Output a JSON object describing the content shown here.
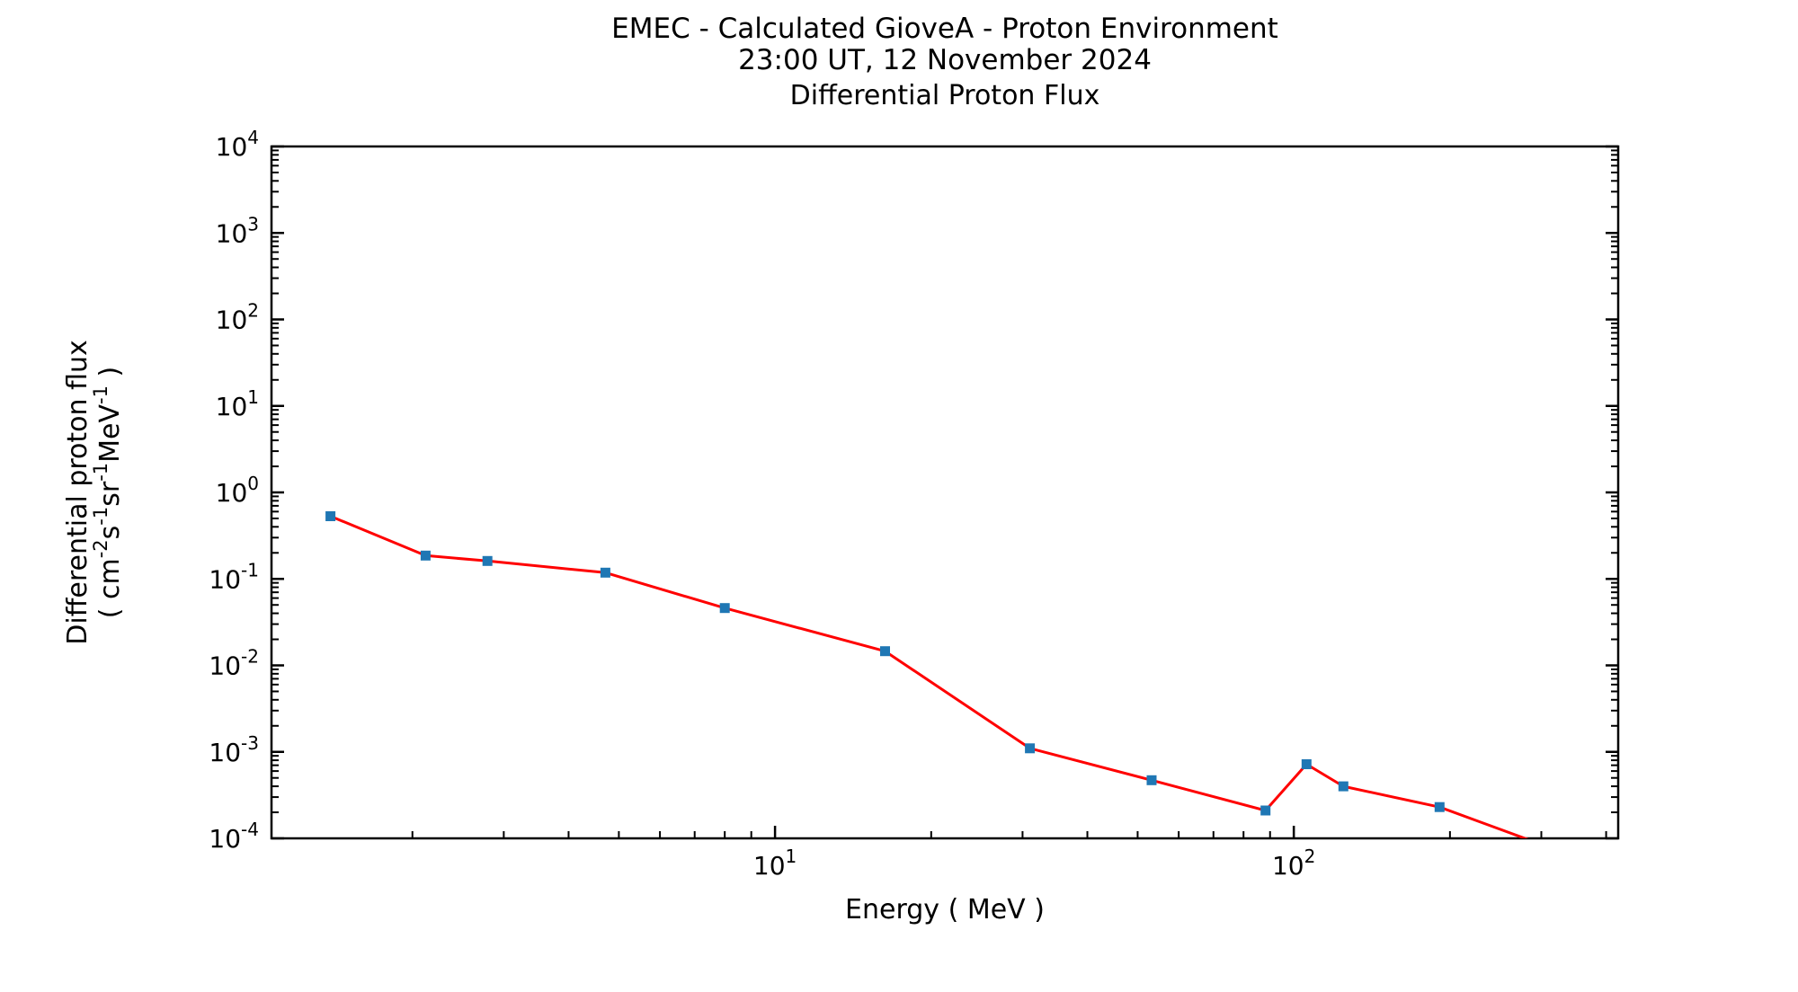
{
  "figure": {
    "suptitle_line1": "EMEC - Calculated GioveA - Proton Environment",
    "suptitle_line2": "23:00 UT, 12 November 2024"
  },
  "chart_data": {
    "type": "line",
    "title": "Differential Proton Flux",
    "xlabel": "Energy ( MeV )",
    "ylabel_line1": "Differential proton flux",
    "ylabel_line2_mathtext": "( cm^{-2}s^{-1}sr^{-1}MeV^{-1} )",
    "xscale": "log",
    "yscale": "log",
    "xlim": [
      1.07,
      422
    ],
    "ylim": [
      0.0001,
      10000
    ],
    "x_major_tick_exponents": [
      1,
      2
    ],
    "y_major_tick_exponents": [
      4,
      3,
      2,
      1,
      0,
      -1,
      -2,
      -3,
      -4
    ],
    "grid": false,
    "legend": false,
    "line_color": "#ff0000",
    "marker_color": "#1f77b4",
    "axis_color": "#000000",
    "series": [
      {
        "name": "differential proton flux",
        "marker": "square",
        "x_energy_mev": [
          1.39,
          2.12,
          2.79,
          4.71,
          8.0,
          16.3,
          31.0,
          53.2,
          88.2,
          105.8,
          124.6,
          191.0,
          330.0
        ],
        "y_flux": [
          0.53,
          0.186,
          0.161,
          0.118,
          0.046,
          0.0146,
          0.0011,
          0.00047,
          0.00021,
          0.00072,
          0.0004,
          0.00023,
          6.9e-05
        ],
        "note_last_point": "final segment exits plot bottom near 278 MeV (last point below y-axis minimum, clipped)"
      }
    ]
  }
}
